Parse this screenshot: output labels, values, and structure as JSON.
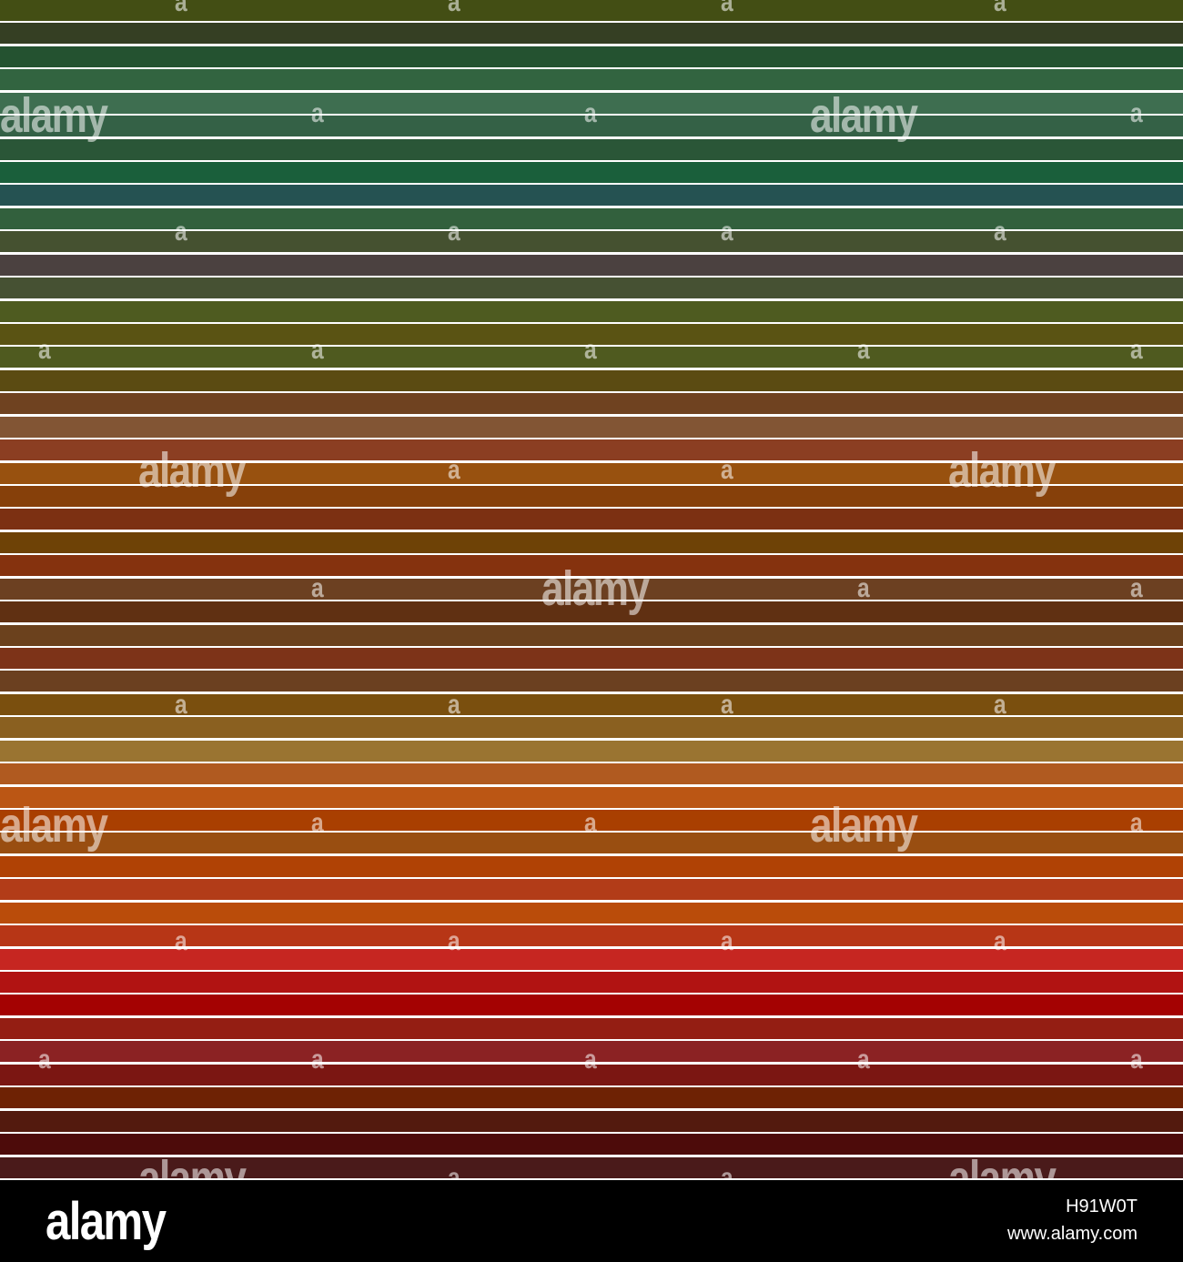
{
  "stripe_colors": [
    "#434e14",
    "#353f23",
    "#245230",
    "#326440",
    "#3e6e50",
    "#346146",
    "#2a5637",
    "#1a5f3b",
    "#255252",
    "#32603d",
    "#455130",
    "#4b4140",
    "#465133",
    "#4e5b20",
    "#5a5313",
    "#4f5a1f",
    "#5b4b12",
    "#6f4220",
    "#825534",
    "#8b3e22",
    "#98510f",
    "#86400a",
    "#7c3012",
    "#6e4206",
    "#85320e",
    "#6c4021",
    "#603012",
    "#6b411d",
    "#7d3318",
    "#6b4020",
    "#7a4f0e",
    "#8a6020",
    "#9a7431",
    "#b05a20",
    "#bb5614",
    "#a93f01",
    "#994e11",
    "#b04205",
    "#b23c18",
    "#ba4c0a",
    "#b73616",
    "#c62621",
    "#b11312",
    "#a40202",
    "#941e13",
    "#8b2223",
    "#7b1612",
    "#6e2204",
    "#531a0e",
    "#4d0b0a",
    "#4a1a1a"
  ],
  "watermark": {
    "text": "alamy",
    "letter": "a"
  },
  "footer": {
    "logo": "alamy",
    "image_id": "H91W0T",
    "url": "www.alamy.com"
  }
}
